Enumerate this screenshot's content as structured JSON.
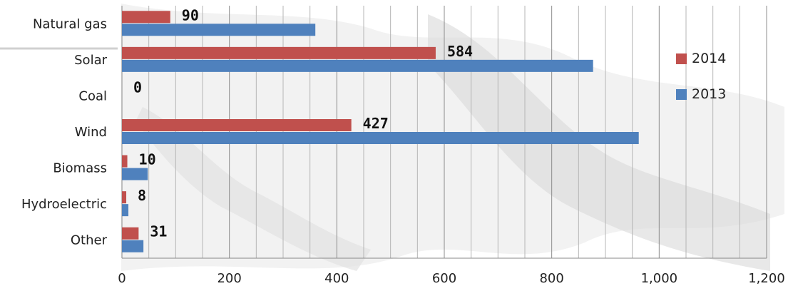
{
  "chart_data": {
    "type": "bar",
    "orientation": "horizontal",
    "categories": [
      "Natural gas",
      "Solar",
      "Coal",
      "Wind",
      "Biomass",
      "Hydroelectric",
      "Other"
    ],
    "series": [
      {
        "name": "2014",
        "values": [
          90,
          584,
          0,
          427,
          10,
          8,
          31
        ],
        "color": "#c0504d"
      },
      {
        "name": "2013",
        "values": [
          360,
          877,
          0,
          962,
          48,
          12,
          40
        ],
        "color": "#4f81bd"
      }
    ],
    "data_labels": {
      "2014": [
        "90",
        "584",
        "0",
        "427",
        "10",
        "8",
        "31"
      ]
    },
    "xlim": [
      0,
      1200
    ],
    "xticks": [
      0,
      200,
      400,
      600,
      800,
      1000,
      1200
    ],
    "xtick_labels": [
      "0",
      "200",
      "400",
      "600",
      "800",
      "1,000",
      "1,200"
    ],
    "grid": "vertical",
    "legend_position": "right"
  }
}
